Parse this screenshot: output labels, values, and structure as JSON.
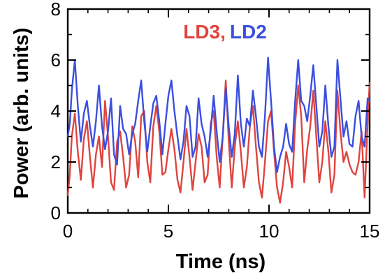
{
  "chart_data": {
    "type": "line",
    "xlabel": "Time (ns)",
    "ylabel": "Power (arb. units)",
    "xlim": [
      0,
      15
    ],
    "ylim": [
      0,
      8
    ],
    "xticks": [
      0,
      5,
      10,
      15
    ],
    "yticks": [
      0,
      2,
      4,
      6,
      8
    ],
    "legend": {
      "placement": "top-center",
      "separator": ",",
      "entries": [
        {
          "label": "LD3",
          "color": "#e0443f"
        },
        {
          "label": "LD2",
          "color": "#3a4fe0"
        }
      ]
    },
    "series": [
      {
        "name": "LD3",
        "color": "#e0443f",
        "x": [
          0.0,
          0.1,
          0.2,
          0.35,
          0.5,
          0.65,
          0.8,
          0.95,
          1.1,
          1.25,
          1.4,
          1.55,
          1.7,
          1.85,
          2.0,
          2.15,
          2.3,
          2.45,
          2.6,
          2.75,
          2.9,
          3.05,
          3.2,
          3.35,
          3.5,
          3.65,
          3.8,
          3.95,
          4.1,
          4.25,
          4.4,
          4.55,
          4.7,
          4.85,
          5.0,
          5.15,
          5.3,
          5.45,
          5.6,
          5.75,
          5.9,
          6.05,
          6.2,
          6.35,
          6.5,
          6.65,
          6.8,
          6.95,
          7.1,
          7.25,
          7.4,
          7.55,
          7.7,
          7.85,
          8.0,
          8.15,
          8.3,
          8.45,
          8.6,
          8.75,
          8.9,
          9.05,
          9.2,
          9.35,
          9.5,
          9.65,
          9.8,
          9.95,
          10.1,
          10.25,
          10.4,
          10.55,
          10.7,
          10.85,
          11.0,
          11.15,
          11.3,
          11.45,
          11.6,
          11.75,
          11.9,
          12.05,
          12.2,
          12.35,
          12.5,
          12.65,
          12.8,
          12.95,
          13.1,
          13.25,
          13.4,
          13.55,
          13.7,
          13.85,
          14.0,
          14.15,
          14.3,
          14.45,
          14.6,
          14.75,
          14.9,
          15.0
        ],
        "y": [
          0.7,
          1.5,
          3.0,
          3.9,
          2.4,
          1.3,
          2.9,
          3.6,
          2.2,
          1.0,
          2.3,
          3.0,
          1.8,
          4.4,
          3.0,
          1.2,
          0.9,
          2.8,
          3.2,
          2.2,
          1.0,
          1.5,
          3.4,
          2.8,
          1.4,
          3.8,
          4.0,
          2.0,
          1.2,
          3.4,
          4.2,
          3.2,
          1.5,
          1.6,
          2.5,
          3.3,
          2.5,
          1.3,
          0.8,
          2.0,
          3.3,
          2.2,
          0.9,
          2.0,
          3.1,
          2.6,
          1.2,
          1.5,
          3.5,
          4.0,
          2.2,
          1.0,
          3.0,
          5.2,
          2.8,
          1.0,
          2.6,
          3.6,
          2.4,
          1.0,
          1.8,
          3.4,
          4.2,
          2.6,
          1.2,
          0.6,
          2.0,
          3.6,
          4.0,
          2.4,
          1.0,
          0.4,
          1.2,
          2.4,
          1.8,
          1.0,
          3.5,
          5.0,
          3.8,
          1.2,
          2.5,
          3.4,
          4.8,
          3.0,
          1.2,
          2.0,
          3.6,
          2.4,
          0.8,
          1.5,
          4.8,
          3.2,
          2.0,
          2.4,
          1.9,
          1.6,
          1.5,
          2.0,
          3.2,
          0.6,
          3.5,
          5.1
        ]
      },
      {
        "name": "LD2",
        "color": "#3a4fe0",
        "x": [
          0.0,
          0.1,
          0.2,
          0.35,
          0.5,
          0.65,
          0.8,
          0.95,
          1.1,
          1.25,
          1.4,
          1.55,
          1.7,
          1.85,
          2.0,
          2.15,
          2.3,
          2.45,
          2.6,
          2.75,
          2.9,
          3.05,
          3.2,
          3.35,
          3.5,
          3.65,
          3.8,
          3.95,
          4.1,
          4.25,
          4.4,
          4.55,
          4.7,
          4.85,
          5.0,
          5.15,
          5.3,
          5.45,
          5.6,
          5.75,
          5.9,
          6.05,
          6.2,
          6.35,
          6.5,
          6.65,
          6.8,
          6.95,
          7.1,
          7.25,
          7.4,
          7.55,
          7.7,
          7.85,
          8.0,
          8.15,
          8.3,
          8.45,
          8.6,
          8.75,
          8.9,
          9.05,
          9.2,
          9.35,
          9.5,
          9.65,
          9.8,
          9.95,
          10.1,
          10.25,
          10.4,
          10.55,
          10.7,
          10.85,
          11.0,
          11.15,
          11.3,
          11.45,
          11.6,
          11.75,
          11.9,
          12.05,
          12.2,
          12.35,
          12.5,
          12.65,
          12.8,
          12.95,
          13.1,
          13.25,
          13.4,
          13.55,
          13.7,
          13.85,
          14.0,
          14.15,
          14.3,
          14.45,
          14.6,
          14.75,
          14.9,
          15.0
        ],
        "y": [
          3.0,
          3.5,
          4.8,
          6.0,
          4.2,
          2.8,
          3.9,
          4.4,
          3.4,
          2.6,
          3.6,
          5.0,
          3.4,
          2.5,
          3.2,
          4.5,
          2.3,
          1.9,
          4.2,
          3.3,
          3.1,
          2.3,
          3.1,
          3.5,
          4.4,
          5.2,
          3.6,
          2.4,
          3.4,
          4.3,
          4.6,
          3.6,
          2.3,
          3.5,
          4.6,
          5.2,
          4.0,
          3.0,
          2.1,
          2.8,
          4.2,
          3.8,
          2.2,
          2.6,
          4.5,
          3.5,
          3.0,
          2.2,
          3.2,
          4.6,
          3.2,
          2.0,
          3.0,
          4.9,
          3.4,
          2.2,
          3.1,
          5.4,
          3.5,
          2.6,
          3.7,
          3.4,
          4.8,
          3.8,
          2.6,
          2.2,
          3.8,
          6.1,
          4.4,
          2.6,
          1.6,
          2.2,
          2.6,
          3.5,
          2.7,
          2.4,
          4.4,
          6.0,
          4.4,
          4.2,
          3.6,
          4.6,
          5.8,
          4.2,
          2.6,
          3.2,
          5.0,
          3.4,
          2.2,
          2.6,
          6.0,
          4.5,
          3.0,
          3.6,
          2.7,
          2.6,
          3.8,
          4.4,
          3.0,
          2.6,
          4.5,
          4.4
        ]
      }
    ]
  }
}
